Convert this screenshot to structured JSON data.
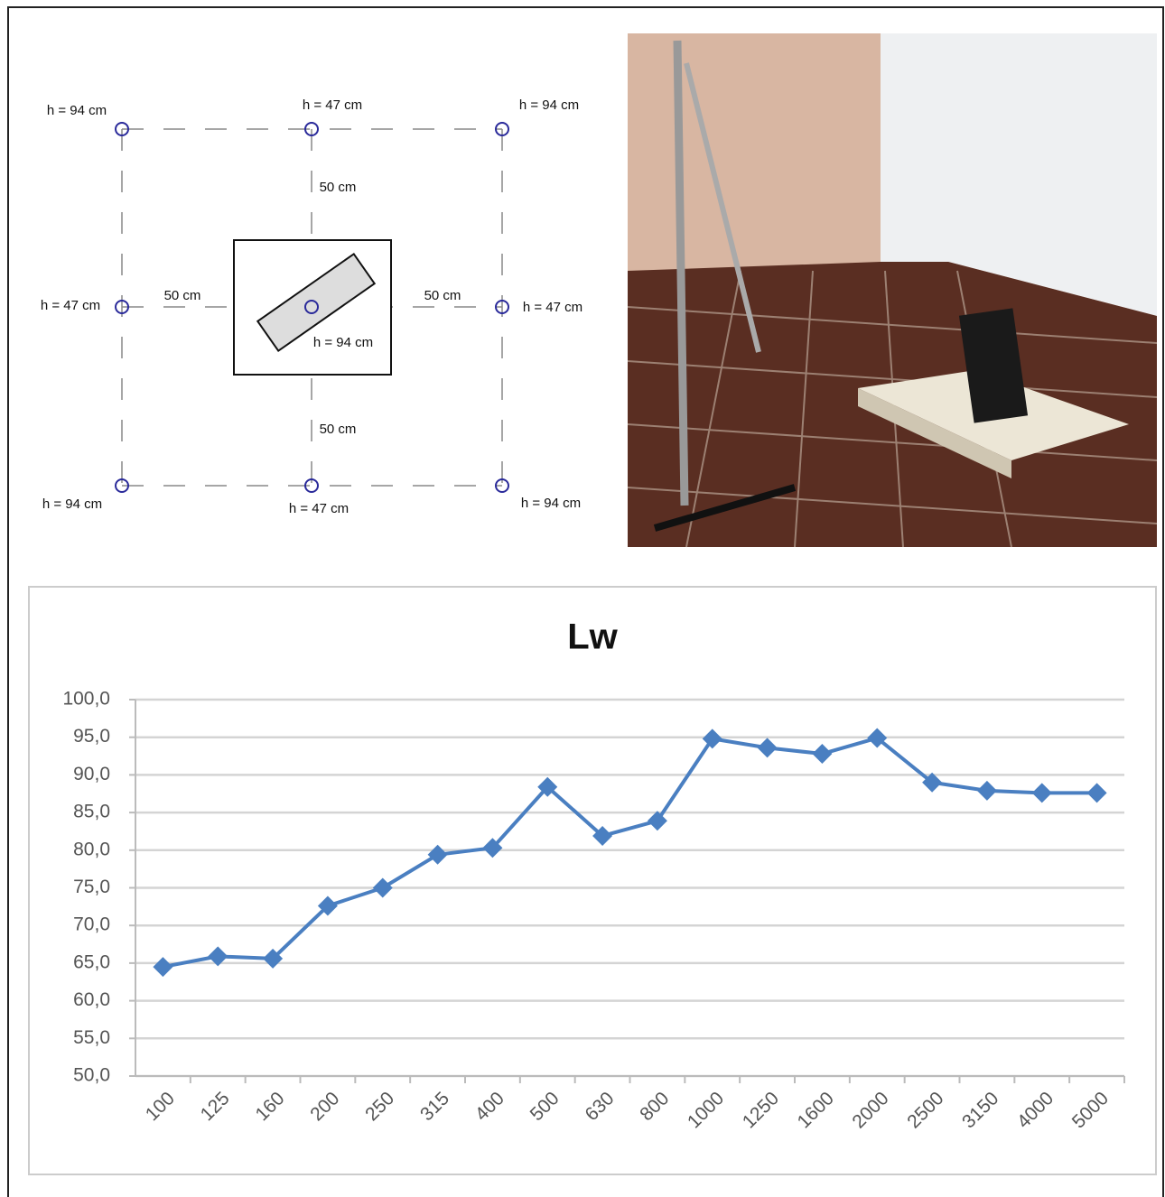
{
  "diagram": {
    "labels": [
      "h = 94 cm",
      "h = 47 cm",
      "h = 94 cm",
      "50 cm",
      "h = 47 cm",
      "50 cm",
      "50 cm",
      "h = 47 cm",
      "h = 94 cm",
      "50 cm",
      "h = 94 cm",
      "h = 47 cm",
      "h = 94 cm"
    ]
  },
  "chart_data": {
    "type": "line",
    "title": "Lw",
    "categories": [
      "100",
      "125",
      "160",
      "200",
      "250",
      "315",
      "400",
      "500",
      "630",
      "800",
      "1000",
      "1250",
      "1600",
      "2000",
      "2500",
      "3150",
      "4000",
      "5000"
    ],
    "values": [
      64.5,
      65.9,
      65.6,
      72.6,
      75.0,
      79.4,
      80.3,
      88.4,
      81.9,
      83.9,
      94.8,
      93.6,
      92.8,
      94.9,
      89.0,
      87.9,
      87.6,
      87.6
    ],
    "color": "#4a7fc1",
    "ylim": [
      50,
      100
    ],
    "yticks": [
      {
        "value": 50,
        "label": "50,0"
      },
      {
        "value": 55,
        "label": "55,0"
      },
      {
        "value": 60,
        "label": "60,0"
      },
      {
        "value": 65,
        "label": "65,0"
      },
      {
        "value": 70,
        "label": "70,0"
      },
      {
        "value": 75,
        "label": "75,0"
      },
      {
        "value": 80,
        "label": "80,0"
      },
      {
        "value": 85,
        "label": "85,0"
      },
      {
        "value": 90,
        "label": "90,0"
      },
      {
        "value": 95,
        "label": "95,0"
      },
      {
        "value": 100,
        "label": "100,0"
      }
    ],
    "grid": true
  }
}
